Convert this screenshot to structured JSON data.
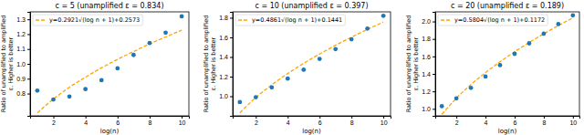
{
  "chart_data": [
    {
      "type": "scatter",
      "title": "c = 5 (unamplified ε = 0.834)",
      "x_label": "log(n)",
      "y_label": [
        "Ratio of unamplified to amplified",
        "ε. Higher is better"
      ],
      "x": [
        1,
        2,
        3,
        4,
        5,
        6,
        7,
        8,
        9,
        10
      ],
      "series": [
        {
          "name": "y=0.2921√(log n + 1)+0.2573",
          "type": "line",
          "line_style": "dashed",
          "color": "#ffa500",
          "values": [
            0.67,
            0.763,
            0.842,
            0.91,
            0.973,
            1.03,
            1.083,
            1.134,
            1.181,
            1.226
          ]
        },
        {
          "type": "scatter",
          "marker": "circle",
          "color": "#1f77b4",
          "values": [
            0.82,
            0.76,
            0.78,
            0.83,
            0.89,
            0.97,
            1.06,
            1.14,
            1.21,
            1.32
          ]
        }
      ],
      "xlim": [
        0.55,
        10.45
      ],
      "xticks": [
        2,
        4,
        6,
        8,
        10
      ],
      "ylim": [
        0.65,
        1.35
      ],
      "yticks": [
        0.8,
        0.9,
        {
          "value": 1,
          "label": "1.0"
        },
        1.1,
        1.2,
        1.3
      ],
      "legend": "upper left",
      "grid": false
    },
    {
      "type": "scatter",
      "title": "c = 10 (unamplified ε = 0.397)",
      "x_label": "log(n)",
      "y_label": [
        "Ratio of unamplified to amplified",
        "ε. Higher is better"
      ],
      "x": [
        1,
        2,
        3,
        4,
        5,
        6,
        7,
        8,
        9,
        10
      ],
      "series": [
        {
          "name": "y=0.4861√(log n + 1)+0.1441",
          "type": "line",
          "line_style": "dashed",
          "color": "#ffa500",
          "values": [
            0.831,
            0.986,
            1.116,
            1.231,
            1.335,
            1.43,
            1.519,
            1.602,
            1.681,
            1.756
          ]
        },
        {
          "type": "scatter",
          "marker": "circle",
          "color": "#1f77b4",
          "values": [
            0.94,
            0.99,
            1.09,
            1.18,
            1.27,
            1.38,
            1.48,
            1.58,
            1.69,
            1.82
          ]
        }
      ],
      "xlim": [
        0.55,
        10.45
      ],
      "xticks": [
        2,
        4,
        6,
        8,
        10
      ],
      "ylim": [
        0.8,
        1.86
      ],
      "yticks": [
        {
          "value": 1,
          "label": "1.0"
        },
        1.2,
        1.4,
        1.6,
        1.8
      ],
      "legend": "upper left",
      "grid": false
    },
    {
      "type": "scatter",
      "title": "c = 20 (unamplified ε = 0.189)",
      "x_label": "log(n)",
      "y_label": [
        "Ratio of unamplified to amplified",
        "ε. Higher is better"
      ],
      "x": [
        1,
        2,
        3,
        4,
        5,
        6,
        7,
        8,
        9,
        10
      ],
      "series": [
        {
          "name": "y=0.5804√(log n + 1)+0.1172",
          "type": "line",
          "line_style": "dashed",
          "color": "#ffa500",
          "values": [
            0.938,
            1.122,
            1.278,
            1.415,
            1.539,
            1.653,
            1.759,
            1.858,
            1.953,
            2.042
          ]
        },
        {
          "type": "scatter",
          "marker": "circle",
          "color": "#1f77b4",
          "values": [
            1.03,
            1.12,
            1.24,
            1.37,
            1.5,
            1.63,
            1.75,
            1.86,
            1.97,
            2.07
          ]
        }
      ],
      "xlim": [
        0.55,
        10.45
      ],
      "xticks": [
        2,
        4,
        6,
        8,
        10
      ],
      "ylim": [
        0.92,
        2.11
      ],
      "yticks": [
        {
          "value": 1,
          "label": "1.0"
        },
        1.2,
        1.4,
        1.6,
        1.8,
        {
          "value": 2,
          "label": "2.0"
        }
      ],
      "legend": "upper left",
      "grid": false
    }
  ]
}
